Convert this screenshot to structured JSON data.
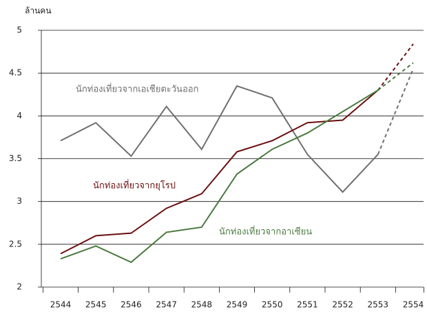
{
  "chart_data": {
    "type": "line",
    "y_label": "ล้านคน",
    "categories": [
      "2544",
      "2545",
      "2546",
      "2547",
      "2548",
      "2549",
      "2550",
      "2551",
      "2552",
      "2553",
      "2554"
    ],
    "series": [
      {
        "name": "นักท่องเที่ยวจากเอเชียตะวันออก",
        "color": "#6e6e6e",
        "values": [
          3.71,
          3.92,
          3.53,
          4.11,
          3.61,
          4.35,
          4.21,
          3.55,
          3.11,
          3.55,
          4.55
        ]
      },
      {
        "name": "นักท่องเที่ยวจากยุโรป",
        "color": "#6b0f0f",
        "values": [
          2.39,
          2.6,
          2.63,
          2.92,
          3.09,
          3.58,
          3.71,
          3.92,
          3.95,
          4.3,
          4.84
        ]
      },
      {
        "name": "นักท่องเที่ยวจากอาเซียน",
        "color": "#4a7a3e",
        "values": [
          2.33,
          2.48,
          2.29,
          2.64,
          2.7,
          3.32,
          3.61,
          3.8,
          4.05,
          4.3,
          4.62
        ]
      }
    ],
    "dashed_after": "2553",
    "ylim": [
      2,
      5
    ],
    "yticks": [
      2,
      2.5,
      3,
      3.5,
      4,
      4.5,
      5
    ],
    "grid": true
  }
}
